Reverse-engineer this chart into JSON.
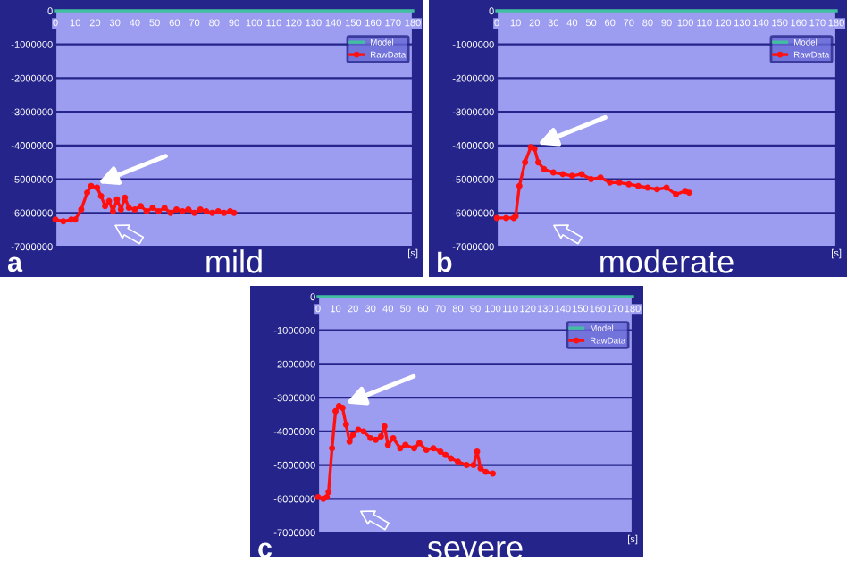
{
  "chart_data": [
    {
      "type": "line",
      "title": "mild",
      "xlabel": "[s]",
      "annotations": [
        "a"
      ],
      "xlim": [
        0,
        180
      ],
      "xticks": [
        0,
        10,
        20,
        30,
        40,
        50,
        60,
        70,
        80,
        90,
        100,
        110,
        120,
        130,
        140,
        150,
        160,
        170,
        180
      ],
      "ylim": [
        -7000000,
        0
      ],
      "yticks": [
        0,
        -1000000,
        -2000000,
        -3000000,
        -4000000,
        -5000000,
        -6000000,
        -7000000
      ],
      "grid": "y",
      "legend": "top right",
      "line_style": "solid",
      "series": [
        {
          "name": "Model",
          "color": "#40c0a0",
          "marker": "none",
          "x": [
            0,
            180
          ],
          "values": [
            0,
            0
          ]
        },
        {
          "name": "RawData",
          "color": "#ff1010",
          "marker": "circle",
          "x": [
            0,
            4,
            8,
            10,
            13,
            16,
            18,
            21,
            23,
            25,
            27,
            29,
            31,
            33,
            35,
            37,
            40,
            43,
            46,
            49,
            52,
            55,
            58,
            61,
            64,
            67,
            70,
            73,
            76,
            79,
            82,
            85,
            88,
            90
          ],
          "values": [
            -6200000,
            -6250000,
            -6200000,
            -6200000,
            -5900000,
            -5400000,
            -5200000,
            -5250000,
            -5500000,
            -5800000,
            -5650000,
            -5950000,
            -5600000,
            -5900000,
            -5550000,
            -5850000,
            -5900000,
            -5800000,
            -5950000,
            -5850000,
            -5950000,
            -5850000,
            -6000000,
            -5900000,
            -5950000,
            -5900000,
            -6000000,
            -5900000,
            -5950000,
            -6000000,
            -5950000,
            -6000000,
            -5950000,
            -6000000
          ]
        }
      ]
    },
    {
      "type": "line",
      "title": "moderate",
      "xlabel": "[s]",
      "annotations": [
        "b"
      ],
      "xlim": [
        0,
        180
      ],
      "xticks": [
        0,
        10,
        20,
        30,
        40,
        50,
        60,
        70,
        80,
        90,
        100,
        110,
        120,
        130,
        140,
        150,
        160,
        170,
        180
      ],
      "ylim": [
        -7000000,
        0
      ],
      "yticks": [
        0,
        -1000000,
        -2000000,
        -3000000,
        -4000000,
        -5000000,
        -6000000,
        -7000000
      ],
      "grid": "y",
      "legend": "top right",
      "line_style": "solid",
      "series": [
        {
          "name": "Model",
          "color": "#40c0a0",
          "marker": "none",
          "x": [
            0,
            180
          ],
          "values": [
            0,
            0
          ]
        },
        {
          "name": "RawData",
          "color": "#ff1010",
          "marker": "circle",
          "x": [
            0,
            5,
            9,
            10,
            12,
            15,
            18,
            20,
            22,
            25,
            30,
            35,
            40,
            45,
            50,
            55,
            60,
            65,
            70,
            75,
            80,
            85,
            90,
            95,
            100,
            102
          ],
          "values": [
            -6150000,
            -6150000,
            -6150000,
            -6100000,
            -5200000,
            -4500000,
            -4050000,
            -4100000,
            -4500000,
            -4700000,
            -4800000,
            -4850000,
            -4900000,
            -4850000,
            -5000000,
            -4950000,
            -5100000,
            -5100000,
            -5150000,
            -5200000,
            -5250000,
            -5300000,
            -5250000,
            -5450000,
            -5350000,
            -5400000
          ]
        }
      ]
    },
    {
      "type": "line",
      "title": "severe",
      "xlabel": "[s]",
      "annotations": [
        "c"
      ],
      "xlim": [
        0,
        180
      ],
      "xticks": [
        0,
        10,
        20,
        30,
        40,
        50,
        60,
        70,
        80,
        90,
        100,
        110,
        120,
        130,
        140,
        150,
        160,
        170,
        180
      ],
      "ylim": [
        -7000000,
        0
      ],
      "yticks": [
        0,
        -1000000,
        -2000000,
        -3000000,
        -4000000,
        -5000000,
        -6000000,
        -7000000
      ],
      "grid": "y",
      "legend": "top right",
      "line_style": "solid",
      "series": [
        {
          "name": "Model",
          "color": "#40c0a0",
          "marker": "none",
          "x": [
            0,
            180
          ],
          "values": [
            0,
            0
          ]
        },
        {
          "name": "RawData",
          "color": "#ff1010",
          "marker": "circle",
          "x": [
            0,
            3,
            5,
            6,
            8,
            10,
            12,
            14,
            16,
            18,
            20,
            23,
            26,
            30,
            33,
            36,
            38,
            40,
            43,
            47,
            50,
            55,
            58,
            62,
            66,
            70,
            73,
            76,
            80,
            85,
            89,
            91,
            93,
            96,
            100
          ],
          "values": [
            -5950000,
            -6000000,
            -5950000,
            -5800000,
            -4500000,
            -3400000,
            -3250000,
            -3300000,
            -3800000,
            -4300000,
            -4100000,
            -3950000,
            -4000000,
            -4200000,
            -4250000,
            -4150000,
            -3850000,
            -4400000,
            -4200000,
            -4500000,
            -4400000,
            -4500000,
            -4350000,
            -4550000,
            -4500000,
            -4600000,
            -4700000,
            -4800000,
            -4900000,
            -5000000,
            -5000000,
            -4600000,
            -5100000,
            -5200000,
            -5250000
          ]
        }
      ]
    }
  ]
}
